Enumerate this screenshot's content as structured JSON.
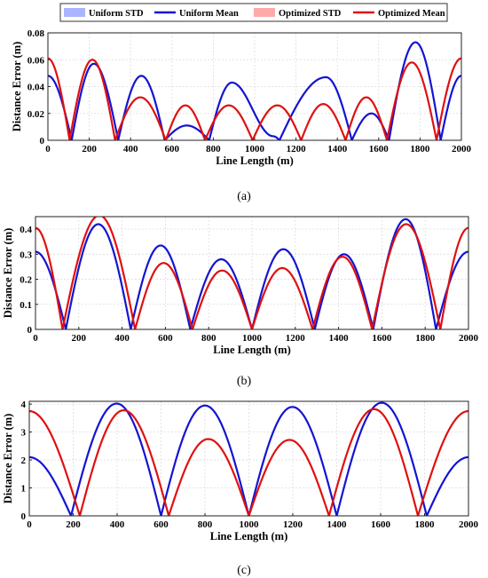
{
  "legend": {
    "position": "top",
    "entries": [
      {
        "label": "Uniform STD",
        "kind": "patch",
        "color": "#aab4ff"
      },
      {
        "label": "Uniform Mean",
        "kind": "line",
        "color": "#1414d2"
      },
      {
        "label": "Optimized STD",
        "kind": "patch",
        "color": "#ffaaaa"
      },
      {
        "label": "Optimized Mean",
        "kind": "line",
        "color": "#e01010"
      }
    ]
  },
  "chart_data": [
    {
      "type": "line",
      "caption": "(a)",
      "xlabel": "Line Length (m)",
      "ylabel": "Distance Error (m)",
      "xlim": [
        0,
        2000
      ],
      "ylim": [
        0,
        0.08
      ],
      "xticks": [
        "0",
        "200",
        "400",
        "600",
        "800",
        "1000",
        "1200",
        "1400",
        "1600",
        "1800",
        "2000"
      ],
      "yticks": [
        "0",
        "0.02",
        "0.04",
        "0.06",
        "0.08"
      ],
      "grid": true,
      "series": [
        {
          "name": "Uniform Mean",
          "color": "#1414d2",
          "zeros": [
            115,
            340,
            565,
            780,
            1120,
            1470,
            1650,
            1900
          ],
          "peaks": [
            {
              "x": 0,
              "y": 0.048
            },
            {
              "x": 222,
              "y": 0.057
            },
            {
              "x": 452,
              "y": 0.048
            },
            {
              "x": 672,
              "y": 0.011
            },
            {
              "x": 890,
              "y": 0.043
            },
            {
              "x": 1090,
              "y": 0.003
            },
            {
              "x": 1345,
              "y": 0.047
            },
            {
              "x": 1565,
              "y": 0.02
            },
            {
              "x": 1778,
              "y": 0.073
            },
            {
              "x": 2000,
              "y": 0.048
            }
          ]
        },
        {
          "name": "Optimized Mean",
          "color": "#e01010",
          "zeros": [
            105,
            325,
            570,
            760,
            990,
            1225,
            1440,
            1640,
            1880
          ],
          "peaks": [
            {
              "x": 0,
              "y": 0.061
            },
            {
              "x": 215,
              "y": 0.06
            },
            {
              "x": 447,
              "y": 0.032
            },
            {
              "x": 665,
              "y": 0.026
            },
            {
              "x": 875,
              "y": 0.026
            },
            {
              "x": 1110,
              "y": 0.026
            },
            {
              "x": 1332,
              "y": 0.027
            },
            {
              "x": 1540,
              "y": 0.032
            },
            {
              "x": 1760,
              "y": 0.058
            },
            {
              "x": 2000,
              "y": 0.061
            }
          ]
        }
      ]
    },
    {
      "type": "line",
      "caption": "(b)",
      "xlabel": "Line Length (m)",
      "ylabel": "Distance Error (m)",
      "xlim": [
        0,
        2000
      ],
      "ylim": [
        0,
        0.45
      ],
      "xticks": [
        "0",
        "200",
        "400",
        "600",
        "800",
        "1000",
        "1200",
        "1400",
        "1600",
        "1800",
        "2000"
      ],
      "yticks": [
        "0",
        "0.1",
        "0.2",
        "0.3",
        "0.4"
      ],
      "grid": true,
      "series": [
        {
          "name": "Uniform Mean",
          "color": "#1414d2",
          "zeros": [
            140,
            440,
            715,
            1000,
            1290,
            1560,
            1850
          ],
          "peaks": [
            {
              "x": 0,
              "y": 0.31
            },
            {
              "x": 290,
              "y": 0.42
            },
            {
              "x": 578,
              "y": 0.335
            },
            {
              "x": 858,
              "y": 0.28
            },
            {
              "x": 1145,
              "y": 0.32
            },
            {
              "x": 1425,
              "y": 0.3
            },
            {
              "x": 1710,
              "y": 0.44
            },
            {
              "x": 2000,
              "y": 0.31
            }
          ]
        },
        {
          "name": "Optimized Mean",
          "color": "#e01010",
          "zeros": [
            125,
            460,
            725,
            1000,
            1280,
            1555,
            1870
          ],
          "peaks": [
            {
              "x": 0,
              "y": 0.405
            },
            {
              "x": 295,
              "y": 0.455
            },
            {
              "x": 592,
              "y": 0.265
            },
            {
              "x": 862,
              "y": 0.235
            },
            {
              "x": 1140,
              "y": 0.245
            },
            {
              "x": 1418,
              "y": 0.29
            },
            {
              "x": 1712,
              "y": 0.42
            },
            {
              "x": 2000,
              "y": 0.405
            }
          ]
        }
      ]
    },
    {
      "type": "line",
      "caption": "(c)",
      "xlabel": "Line Length (m)",
      "ylabel": "Distance Error (m)",
      "xlim": [
        0,
        2000
      ],
      "ylim": [
        0,
        4.1
      ],
      "xticks": [
        "0",
        "200",
        "400",
        "600",
        "800",
        "1000",
        "1200",
        "1400",
        "1600",
        "1800",
        "2000"
      ],
      "yticks": [
        "0",
        "1",
        "2",
        "3",
        "4"
      ],
      "grid": true,
      "series": [
        {
          "name": "Uniform Mean",
          "color": "#1414d2",
          "zeros": [
            190,
            600,
            1000,
            1400,
            1810
          ],
          "peaks": [
            {
              "x": 0,
              "y": 2.1
            },
            {
              "x": 398,
              "y": 4.02
            },
            {
              "x": 800,
              "y": 3.95
            },
            {
              "x": 1198,
              "y": 3.9
            },
            {
              "x": 1605,
              "y": 4.05
            },
            {
              "x": 2000,
              "y": 2.1
            }
          ]
        },
        {
          "name": "Optimized Mean",
          "color": "#e01010",
          "zeros": [
            230,
            635,
            1000,
            1365,
            1770
          ],
          "peaks": [
            {
              "x": 0,
              "y": 3.75
            },
            {
              "x": 430,
              "y": 3.78
            },
            {
              "x": 815,
              "y": 2.75
            },
            {
              "x": 1185,
              "y": 2.72
            },
            {
              "x": 1570,
              "y": 3.82
            },
            {
              "x": 2000,
              "y": 3.75
            }
          ]
        }
      ]
    }
  ]
}
